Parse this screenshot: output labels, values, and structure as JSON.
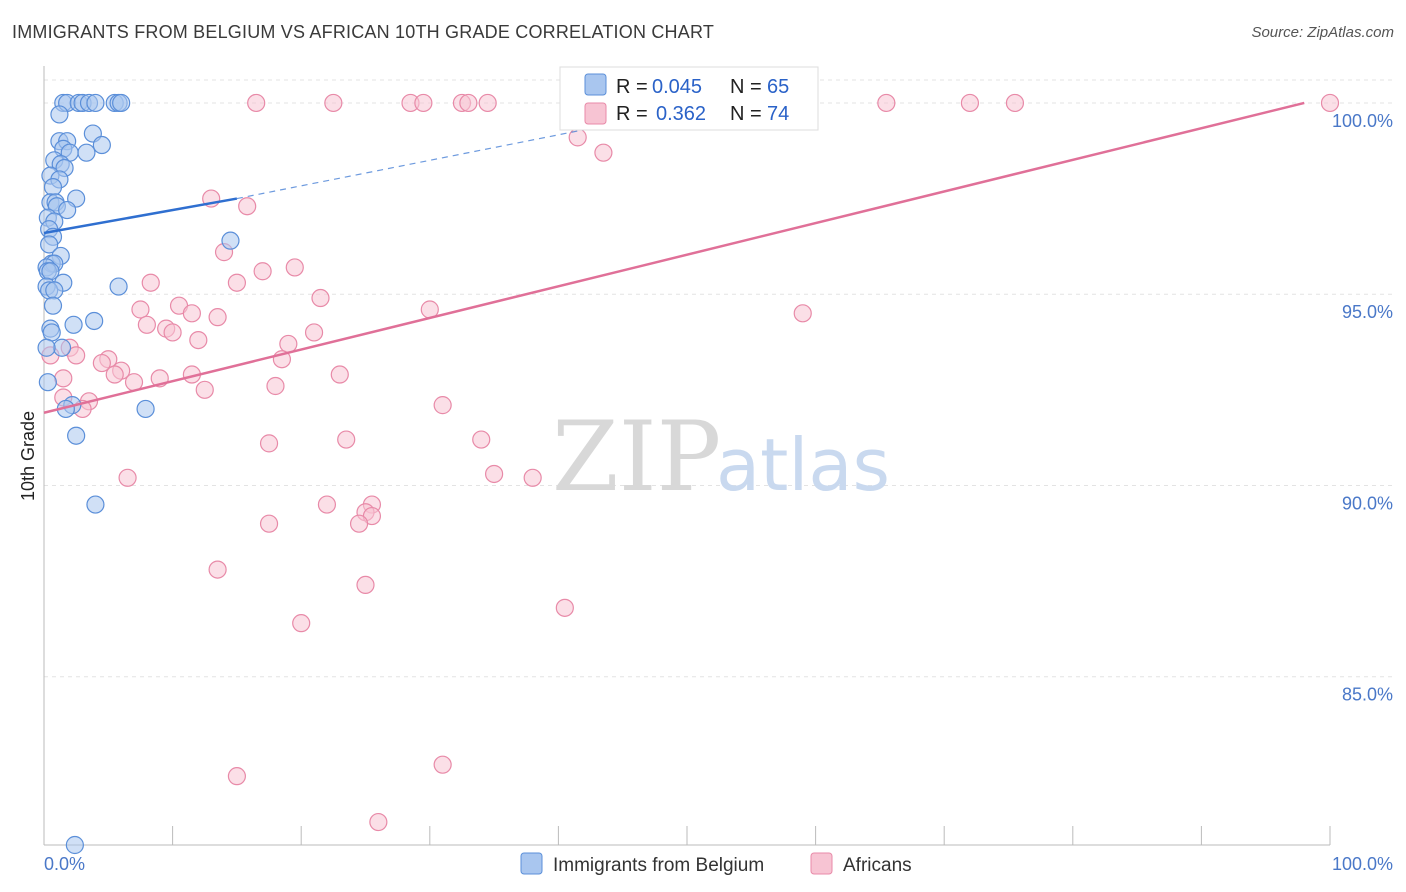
{
  "title": "IMMIGRANTS FROM BELGIUM VS AFRICAN 10TH GRADE CORRELATION CHART",
  "source": "Source: ZipAtlas.com",
  "watermark": {
    "zip": "ZIP",
    "atlas": "atlas"
  },
  "colors": {
    "blue_fill": "#a9c6ef",
    "blue_stroke": "#5b8fd9",
    "blue_line": "#2f6fd0",
    "pink_fill": "#f7c4d3",
    "pink_stroke": "#e88aa8",
    "pink_line": "#e07098",
    "grid": "#e3e3e3",
    "tick_text": "#4a78c8"
  },
  "legend": {
    "rows": [
      {
        "r_label": "R = ",
        "r_value": "0.045",
        "n_label": "N = ",
        "n_value": "65"
      },
      {
        "r_label": "R = ",
        "r_value": "0.362",
        "n_label": "N = ",
        "n_value": "74"
      }
    ]
  },
  "bottom_legend": [
    "Immigrants from Belgium",
    "Africans"
  ],
  "chart_data": {
    "type": "scatter",
    "xlabel": "",
    "ylabel": "10th Grade",
    "xlim": [
      0,
      100
    ],
    "ylim": [
      80.6,
      100.6
    ],
    "x_tick_labels": [
      "0.0%",
      "100.0%"
    ],
    "y_ticks": [
      85,
      90,
      95,
      100
    ],
    "y_tick_labels": [
      "85.0%",
      "90.0%",
      "95.0%",
      "100.0%"
    ],
    "grid": "horizontal dashed",
    "series": [
      {
        "name": "Immigrants from Belgium",
        "color": "#5b8fd9",
        "r": 0.045,
        "n": 65,
        "trend": {
          "x0": 0,
          "y0": 96.6,
          "x1": 15,
          "y1": 97.5,
          "dashed_to": {
            "x": 42,
            "y": 99.3
          }
        },
        "points": [
          [
            1.5,
            100
          ],
          [
            1.8,
            100
          ],
          [
            2.7,
            100
          ],
          [
            3,
            100
          ],
          [
            3.5,
            100
          ],
          [
            4,
            100
          ],
          [
            5.5,
            100
          ],
          [
            5.8,
            100
          ],
          [
            6,
            100
          ],
          [
            1.2,
            99.7
          ],
          [
            3.8,
            99.2
          ],
          [
            1.2,
            99
          ],
          [
            1.8,
            99
          ],
          [
            1.5,
            98.8
          ],
          [
            2,
            98.7
          ],
          [
            4.5,
            98.9
          ],
          [
            3.3,
            98.7
          ],
          [
            0.8,
            98.5
          ],
          [
            1.3,
            98.4
          ],
          [
            1.6,
            98.3
          ],
          [
            0.5,
            98.1
          ],
          [
            1.2,
            98
          ],
          [
            0.7,
            97.8
          ],
          [
            2.5,
            97.5
          ],
          [
            0.5,
            97.4
          ],
          [
            0.9,
            97.4
          ],
          [
            1,
            97.3
          ],
          [
            1.8,
            97.2
          ],
          [
            0.3,
            97
          ],
          [
            0.8,
            96.9
          ],
          [
            0.4,
            96.7
          ],
          [
            0.7,
            96.5
          ],
          [
            14.5,
            96.4
          ],
          [
            0.4,
            96.3
          ],
          [
            1.3,
            96
          ],
          [
            0.6,
            95.8
          ],
          [
            0.8,
            95.8
          ],
          [
            0.2,
            95.7
          ],
          [
            0.3,
            95.6
          ],
          [
            0.5,
            95.6
          ],
          [
            1.5,
            95.3
          ],
          [
            5.8,
            95.2
          ],
          [
            0.2,
            95.2
          ],
          [
            0.4,
            95.1
          ],
          [
            0.8,
            95.1
          ],
          [
            0.7,
            94.7
          ],
          [
            3.9,
            94.3
          ],
          [
            2.3,
            94.2
          ],
          [
            0.5,
            94.1
          ],
          [
            0.6,
            94
          ],
          [
            1.4,
            93.6
          ],
          [
            0.2,
            93.6
          ],
          [
            0.3,
            92.7
          ],
          [
            2.2,
            92.1
          ],
          [
            1.7,
            92
          ],
          [
            7.9,
            92
          ],
          [
            2.5,
            91.3
          ],
          [
            4,
            89.5
          ],
          [
            2.4,
            80.6
          ]
        ]
      },
      {
        "name": "Africans",
        "color": "#e88aa8",
        "r": 0.362,
        "n": 74,
        "trend": {
          "x0": 0,
          "y0": 91.9,
          "x1": 98,
          "y1": 100
        },
        "points": [
          [
            16.5,
            100
          ],
          [
            22.5,
            100
          ],
          [
            28.5,
            100
          ],
          [
            29.5,
            100
          ],
          [
            32.5,
            100
          ],
          [
            33,
            100
          ],
          [
            34.5,
            100
          ],
          [
            50.5,
            100
          ],
          [
            65.5,
            100
          ],
          [
            72,
            100
          ],
          [
            75.5,
            100
          ],
          [
            100,
            100
          ],
          [
            41.5,
            99.1
          ],
          [
            43.5,
            98.7
          ],
          [
            13,
            97.5
          ],
          [
            15.8,
            97.3
          ],
          [
            14,
            96.1
          ],
          [
            17,
            95.6
          ],
          [
            19.5,
            95.7
          ],
          [
            15,
            95.3
          ],
          [
            8.3,
            95.3
          ],
          [
            21.5,
            94.9
          ],
          [
            7.5,
            94.6
          ],
          [
            10.5,
            94.7
          ],
          [
            11.5,
            94.5
          ],
          [
            30,
            94.6
          ],
          [
            59,
            94.5
          ],
          [
            13.5,
            94.4
          ],
          [
            8,
            94.2
          ],
          [
            9.5,
            94.1
          ],
          [
            10,
            94
          ],
          [
            21,
            94
          ],
          [
            12,
            93.8
          ],
          [
            19,
            93.7
          ],
          [
            2,
            93.6
          ],
          [
            2.5,
            93.4
          ],
          [
            0.5,
            93.4
          ],
          [
            5,
            93.3
          ],
          [
            18.5,
            93.3
          ],
          [
            4.5,
            93.2
          ],
          [
            6,
            93
          ],
          [
            23,
            92.9
          ],
          [
            5.5,
            92.9
          ],
          [
            9,
            92.8
          ],
          [
            11.5,
            92.9
          ],
          [
            7,
            92.7
          ],
          [
            1.5,
            92.8
          ],
          [
            18,
            92.6
          ],
          [
            12.5,
            92.5
          ],
          [
            1.5,
            92.3
          ],
          [
            3.5,
            92.2
          ],
          [
            3,
            92
          ],
          [
            31,
            92.1
          ],
          [
            23.5,
            91.2
          ],
          [
            34,
            91.2
          ],
          [
            17.5,
            91.1
          ],
          [
            35,
            90.3
          ],
          [
            38,
            90.2
          ],
          [
            6.5,
            90.2
          ],
          [
            22,
            89.5
          ],
          [
            25.5,
            89.5
          ],
          [
            25,
            89.3
          ],
          [
            25.5,
            89.2
          ],
          [
            17.5,
            89
          ],
          [
            24.5,
            89
          ],
          [
            13.5,
            87.8
          ],
          [
            25,
            87.4
          ],
          [
            40.5,
            86.8
          ],
          [
            20,
            86.4
          ],
          [
            31,
            82.7
          ],
          [
            15,
            82.4
          ],
          [
            26,
            81.2
          ]
        ]
      }
    ]
  }
}
